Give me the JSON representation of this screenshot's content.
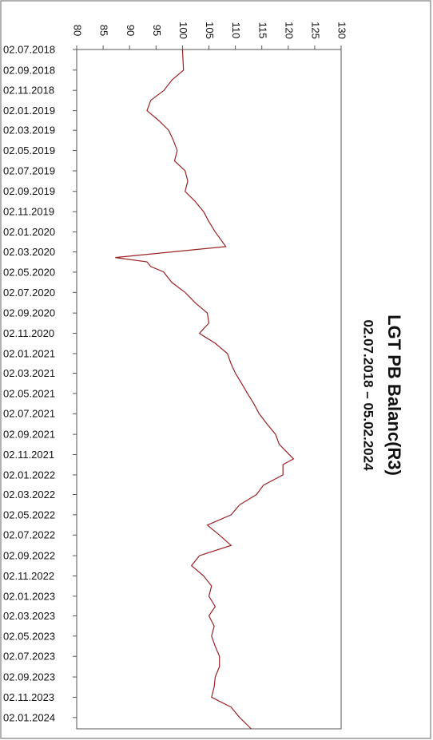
{
  "chart_data": {
    "type": "line",
    "title": "LGT PB Balanc(R3)",
    "subtitle": "02.07.2018 – 05.02.2024",
    "x": [
      "02.07.2018",
      "02.09.2018",
      "02.10.2018",
      "02.11.2018",
      "02.12.2018",
      "02.01.2019",
      "02.02.2019",
      "02.03.2019",
      "02.04.2019",
      "02.05.2019",
      "02.06.2019",
      "02.07.2019",
      "02.08.2019",
      "02.09.2019",
      "02.10.2019",
      "02.11.2019",
      "02.12.2019",
      "02.01.2020",
      "15.02.2020",
      "19.03.2020",
      "01.04.2020",
      "15.04.2020",
      "01.05.2020",
      "02.06.2020",
      "02.07.2020",
      "02.08.2020",
      "02.09.2020",
      "02.10.2020",
      "02.11.2020",
      "02.12.2020",
      "02.01.2021",
      "02.02.2021",
      "02.03.2021",
      "02.04.2021",
      "02.05.2021",
      "02.06.2021",
      "02.07.2021",
      "02.08.2021",
      "02.09.2021",
      "02.10.2021",
      "15.11.2021",
      "02.12.2021",
      "02.01.2022",
      "02.02.2022",
      "02.03.2022",
      "02.04.2022",
      "02.05.2022",
      "02.06.2022",
      "02.07.2022",
      "02.08.2022",
      "02.09.2022",
      "02.10.2022",
      "02.11.2022",
      "02.12.2022",
      "02.01.2023",
      "02.02.2023",
      "02.03.2023",
      "02.04.2023",
      "02.05.2023",
      "02.06.2023",
      "02.07.2023",
      "02.08.2023",
      "02.09.2023",
      "02.10.2023",
      "02.11.2023",
      "02.12.2023",
      "02.01.2024",
      "05.02.2024"
    ],
    "series": [
      {
        "color": "#9b2226",
        "values": [
          100,
          100.2,
          98,
          96.5,
          94,
          93.3,
          95.6,
          97.4,
          98.3,
          99,
          98.5,
          100.5,
          101,
          100.5,
          102.4,
          104,
          105,
          106.2,
          108.2,
          87.3,
          93.3,
          94,
          96.4,
          98,
          100.5,
          102.4,
          104.7,
          105,
          103.2,
          106.2,
          108.5,
          109.2,
          110,
          111.2,
          112.3,
          113.5,
          114.5,
          116,
          117.6,
          118.3,
          121,
          119,
          119,
          115.3,
          114,
          110.8,
          109.2,
          104.7,
          107,
          109.2,
          103.2,
          101.7,
          104,
          105.5,
          105,
          106.2,
          105,
          106,
          105.5,
          106.2,
          107,
          107,
          106.2,
          106,
          105.5,
          109.2,
          110.8,
          113
        ]
      }
    ],
    "xlim": [
      "02.07.2018",
      "05.02.2024"
    ],
    "xticks": [
      "02.07.2018",
      "02.09.2018",
      "02.11.2018",
      "02.01.2019",
      "02.03.2019",
      "02.05.2019",
      "02.07.2019",
      "02.09.2019",
      "02.11.2019",
      "02.01.2020",
      "02.03.2020",
      "02.05.2020",
      "02.07.2020",
      "02.09.2020",
      "02.11.2020",
      "02.01.2021",
      "02.03.2021",
      "02.05.2021",
      "02.07.2021",
      "02.09.2021",
      "02.11.2021",
      "02.01.2022",
      "02.03.2022",
      "02.05.2022",
      "02.07.2022",
      "02.09.2022",
      "02.11.2022",
      "02.01.2023",
      "02.03.2023",
      "02.05.2023",
      "02.07.2023",
      "02.09.2023",
      "02.11.2023",
      "02.01.2024"
    ],
    "ylim": [
      80,
      130
    ],
    "yticks": [
      80,
      85,
      90,
      95,
      100,
      105,
      110,
      115,
      120,
      125,
      130
    ]
  }
}
